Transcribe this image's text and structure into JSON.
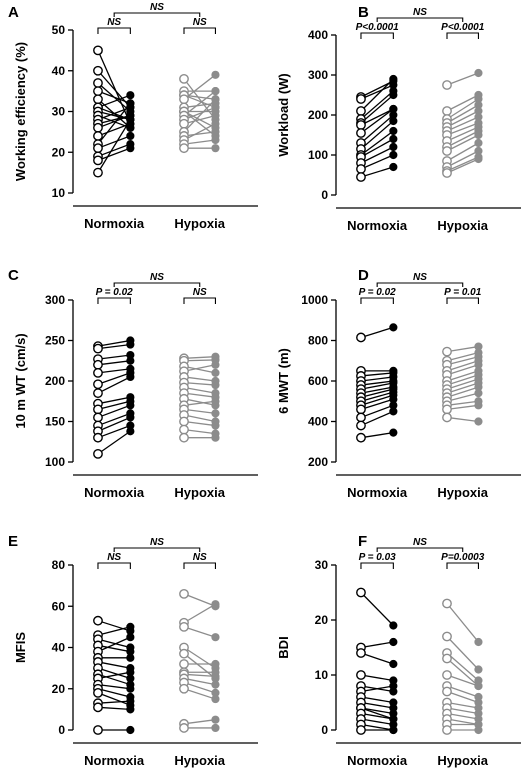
{
  "colors": {
    "normoxia": "#000000",
    "hypoxia": "#8c8c8c",
    "open_fill": "#ffffff"
  },
  "chart_data": [
    {
      "type": "scatter",
      "panel_letter": "A",
      "ylabel": "Working efficiency (%)",
      "ylim": [
        10,
        50
      ],
      "yticks": [
        10,
        20,
        30,
        40,
        50
      ],
      "categories": [
        "Normoxia",
        "Hypoxia"
      ],
      "significance": {
        "normoxia": "NS",
        "hypoxia": "NS",
        "overall": "NS"
      },
      "series": [
        {
          "pre": [
            45,
            40,
            37,
            35,
            33,
            31,
            31,
            30,
            29,
            28,
            27,
            26,
            24,
            22,
            21,
            19,
            18,
            15
          ],
          "post": [
            27,
            31,
            30,
            32,
            26,
            28,
            34,
            28,
            26,
            31,
            29,
            29,
            27,
            32,
            24,
            22,
            21,
            28
          ]
        },
        {
          "pre": [
            38,
            35,
            34,
            34,
            33,
            31,
            30,
            30,
            30,
            29,
            28,
            27,
            25,
            24,
            23,
            22,
            21
          ],
          "post": [
            28,
            35,
            31,
            33,
            39,
            32,
            26,
            30,
            24,
            35,
            31,
            29,
            33,
            25,
            27,
            23,
            21
          ]
        }
      ]
    },
    {
      "type": "scatter",
      "panel_letter": "B",
      "ylabel": "Workload (W)",
      "ylim": [
        0,
        400
      ],
      "yticks": [
        0,
        100,
        200,
        300,
        400
      ],
      "categories": [
        "Normoxia",
        "Hypoxia"
      ],
      "significance": {
        "normoxia": "P<0.0001",
        "hypoxia": "P<0.0001",
        "overall": "NS"
      },
      "series": [
        {
          "pre": [
            245,
            240,
            210,
            190,
            180,
            175,
            155,
            130,
            115,
            100,
            95,
            80,
            65,
            45
          ],
          "post": [
            285,
            275,
            290,
            260,
            250,
            215,
            215,
            200,
            185,
            160,
            140,
            120,
            100,
            70
          ]
        },
        {
          "pre": [
            275,
            210,
            190,
            180,
            170,
            160,
            150,
            135,
            120,
            110,
            85,
            70,
            60,
            55
          ],
          "post": [
            305,
            250,
            240,
            225,
            210,
            195,
            180,
            170,
            160,
            150,
            130,
            110,
            95,
            90
          ]
        }
      ]
    },
    {
      "type": "scatter",
      "panel_letter": "C",
      "ylabel": "10 m WT (cm/s)",
      "ylim": [
        100,
        300
      ],
      "yticks": [
        100,
        150,
        200,
        250,
        300
      ],
      "categories": [
        "Normoxia",
        "Hypoxia"
      ],
      "significance": {
        "normoxia": "P = 0.02",
        "hypoxia": "NS",
        "overall": "NS"
      },
      "series": [
        {
          "pre": [
            243,
            240,
            227,
            220,
            210,
            196,
            185,
            172,
            165,
            155,
            145,
            138,
            130,
            110
          ],
          "post": [
            250,
            245,
            232,
            225,
            215,
            210,
            205,
            180,
            175,
            170,
            160,
            155,
            145,
            138
          ]
        },
        {
          "pre": [
            228,
            225,
            218,
            212,
            205,
            198,
            192,
            185,
            178,
            170,
            165,
            158,
            150,
            140,
            130
          ],
          "post": [
            230,
            226,
            210,
            220,
            200,
            195,
            185,
            180,
            170,
            175,
            160,
            150,
            145,
            135,
            130
          ]
        }
      ]
    },
    {
      "type": "scatter",
      "panel_letter": "D",
      "ylabel": "6 MWT (m)",
      "ylim": [
        200,
        1000
      ],
      "yticks": [
        200,
        400,
        600,
        800,
        1000
      ],
      "categories": [
        "Normoxia",
        "Hypoxia"
      ],
      "significance": {
        "normoxia": "P = 0.02",
        "hypoxia": "P = 0.01",
        "overall": "NS"
      },
      "series": [
        {
          "pre": [
            815,
            650,
            625,
            600,
            580,
            560,
            540,
            520,
            500,
            480,
            460,
            420,
            380,
            320
          ],
          "post": [
            865,
            650,
            640,
            620,
            600,
            590,
            570,
            560,
            545,
            530,
            510,
            480,
            450,
            345
          ]
        },
        {
          "pre": [
            745,
            700,
            680,
            650,
            630,
            600,
            580,
            560,
            540,
            520,
            500,
            480,
            460,
            420
          ],
          "post": [
            770,
            740,
            720,
            700,
            680,
            650,
            630,
            610,
            590,
            570,
            540,
            500,
            480,
            400
          ]
        }
      ]
    },
    {
      "type": "scatter",
      "panel_letter": "E",
      "ylabel": "MFIS",
      "ylim": [
        0,
        80
      ],
      "yticks": [
        0,
        20,
        40,
        60,
        80
      ],
      "categories": [
        "Normoxia",
        "Hypoxia"
      ],
      "significance": {
        "normoxia": "NS",
        "hypoxia": "NS",
        "overall": "NS"
      },
      "series": [
        {
          "pre": [
            53,
            46,
            44,
            41,
            38,
            35,
            33,
            30,
            27,
            25,
            22,
            20,
            18,
            13,
            11,
            0
          ],
          "post": [
            48,
            50,
            40,
            38,
            45,
            35,
            30,
            25,
            22,
            28,
            20,
            16,
            12,
            14,
            10,
            0
          ]
        },
        {
          "pre": [
            66,
            52,
            50,
            40,
            37,
            32,
            28,
            27,
            25,
            23,
            20,
            3,
            1
          ],
          "post": [
            60,
            61,
            45,
            30,
            25,
            32,
            28,
            26,
            22,
            18,
            15,
            5,
            1
          ]
        }
      ]
    },
    {
      "type": "scatter",
      "panel_letter": "F",
      "ylabel": "BDI",
      "ylim": [
        0,
        30
      ],
      "yticks": [
        0,
        10,
        20,
        30
      ],
      "categories": [
        "Normoxia",
        "Hypoxia"
      ],
      "significance": {
        "normoxia": "P = 0.03",
        "hypoxia": "P=0.0003",
        "overall": "NS"
      },
      "series": [
        {
          "pre": [
            25,
            15,
            14,
            10,
            8,
            7,
            6,
            5,
            4,
            4,
            3,
            2,
            1,
            0
          ],
          "post": [
            19,
            16,
            12,
            9,
            7,
            8,
            5,
            4,
            3,
            2,
            2,
            1,
            0,
            0
          ]
        },
        {
          "pre": [
            23,
            17,
            14,
            13,
            10,
            8,
            7,
            5,
            4,
            3,
            2,
            1,
            0
          ],
          "post": [
            16,
            11,
            9,
            8,
            8,
            6,
            5,
            4,
            3,
            2,
            1,
            1,
            0
          ]
        }
      ]
    }
  ]
}
